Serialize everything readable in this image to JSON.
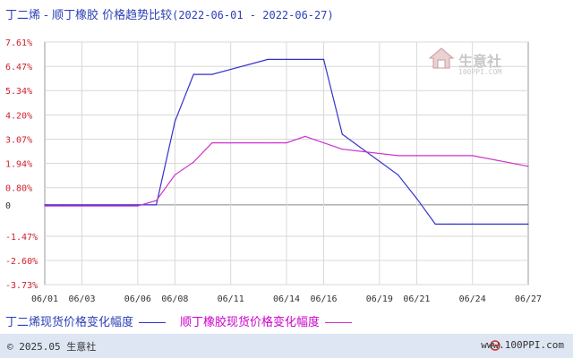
{
  "header": {
    "title": "丁二烯 - 顺丁橡胶 价格趋势比较",
    "date_range": "(2022-06-01 - 2022-06-27)"
  },
  "watermark": {
    "name": "生意社",
    "url": "100PPI.COM"
  },
  "legend": {
    "series1_label": "丁二烯现货价格变化幅度",
    "series2_label": "顺丁橡胶现货价格变化幅度"
  },
  "footer": {
    "copyright": "© 2025.05 生意社",
    "site": "www.100PPI.com"
  },
  "colors": {
    "series1": "#3333cc",
    "series2": "#cc33cc",
    "ytick": "#d0202a",
    "footer_bg": "#dde6f2"
  },
  "chart_data": {
    "type": "line",
    "title": "丁二烯 - 顺丁橡胶 价格趋势比较",
    "y_ticks": [
      "7.61%",
      "6.47%",
      "5.34%",
      "4.20%",
      "3.07%",
      "1.94%",
      "0.80%",
      "0",
      "-1.47%",
      "-2.60%",
      "-3.73%"
    ],
    "y_tick_values": [
      7.61,
      6.47,
      5.34,
      4.2,
      3.07,
      1.94,
      0.8,
      0,
      -1.47,
      -2.6,
      -3.73
    ],
    "ylim": [
      -3.73,
      7.61
    ],
    "y_unit": "%",
    "x_ticks": [
      "06/01",
      "06/03",
      "06/06",
      "06/08",
      "06/11",
      "06/14",
      "06/16",
      "06/19",
      "06/21",
      "06/24",
      "06/27"
    ],
    "x": [
      "06/01",
      "06/02",
      "06/03",
      "06/06",
      "06/07",
      "06/08",
      "06/09",
      "06/10",
      "06/13",
      "06/14",
      "06/15",
      "06/16",
      "06/17",
      "06/20",
      "06/21",
      "06/22",
      "06/23",
      "06/24",
      "06/27"
    ],
    "grid": true,
    "series": [
      {
        "name": "丁二烯现货价格变化幅度",
        "color": "#3333cc",
        "values": [
          0,
          0,
          0,
          0,
          0,
          3.9,
          6.1,
          6.1,
          6.8,
          6.8,
          6.8,
          6.8,
          3.3,
          1.4,
          0.3,
          -0.9,
          -0.9,
          -0.9,
          -0.9
        ]
      },
      {
        "name": "顺丁橡胶现货价格变化幅度",
        "color": "#cc33cc",
        "values": [
          -0.05,
          -0.05,
          -0.05,
          -0.05,
          0.2,
          1.4,
          2.0,
          2.9,
          2.9,
          2.9,
          3.2,
          2.9,
          2.6,
          2.3,
          2.3,
          2.3,
          2.3,
          2.3,
          1.8
        ]
      }
    ]
  }
}
